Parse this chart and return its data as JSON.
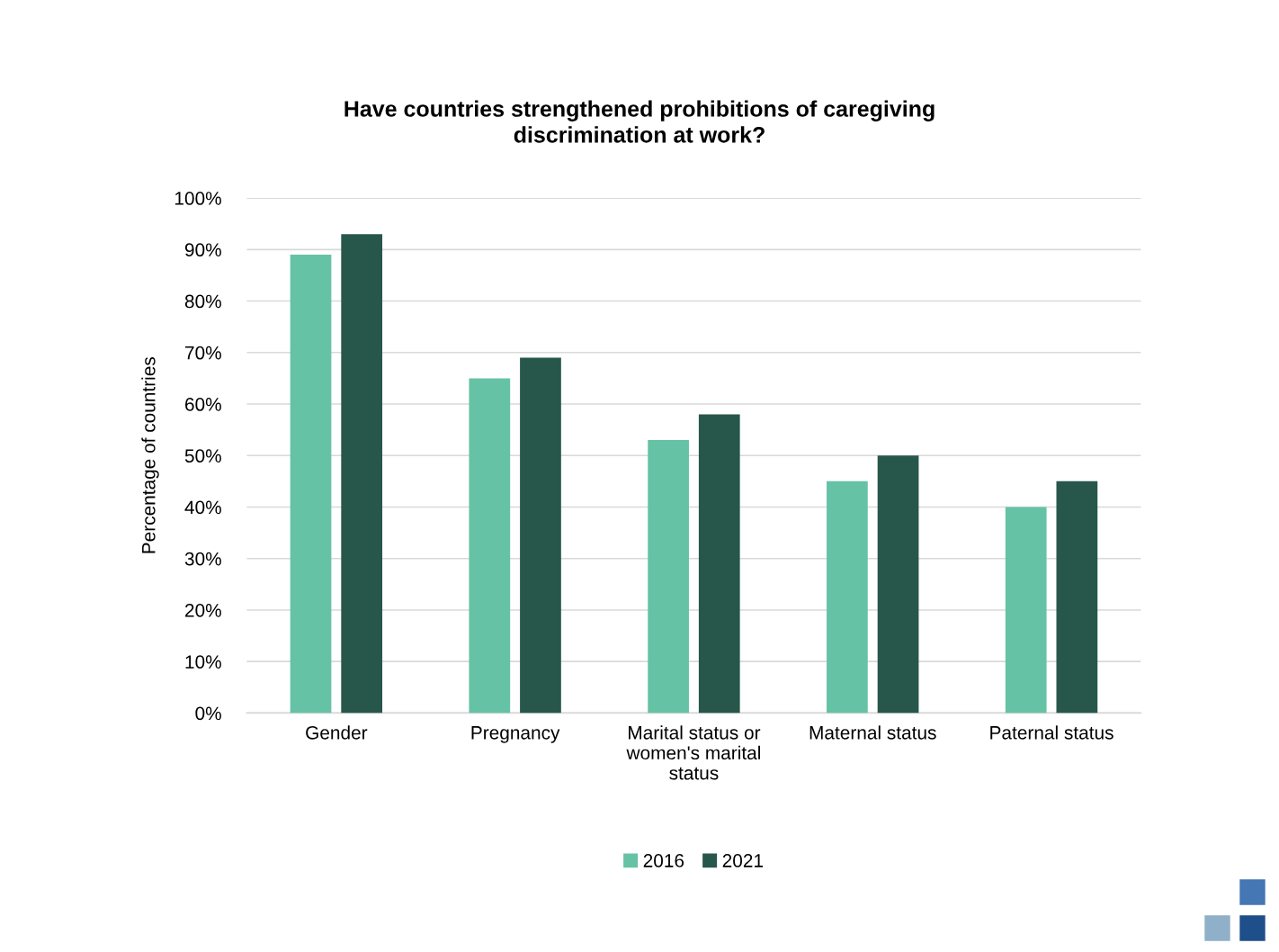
{
  "chart_data": {
    "type": "bar",
    "title": "Have countries strengthened prohibitions of caregiving discrimination at work?",
    "ylabel": "Percentage of countries",
    "categories": [
      "Gender",
      "Pregnancy",
      "Marital status or women's marital status",
      "Maternal status",
      "Paternal status"
    ],
    "series": [
      {
        "name": "2016",
        "color": "#66c2a5",
        "values": [
          89,
          65,
          53,
          45,
          40
        ]
      },
      {
        "name": "2021",
        "color": "#27574a",
        "values": [
          93,
          69,
          58,
          50,
          45
        ]
      }
    ],
    "ylim": [
      0,
      100
    ],
    "yticks": [
      {
        "value": 0,
        "label": "0%"
      },
      {
        "value": 10,
        "label": "10%"
      },
      {
        "value": 20,
        "label": "20%"
      },
      {
        "value": 30,
        "label": "30%"
      },
      {
        "value": 40,
        "label": "40%"
      },
      {
        "value": 50,
        "label": "50%"
      },
      {
        "value": 60,
        "label": "60%"
      },
      {
        "value": 70,
        "label": "70%"
      },
      {
        "value": 80,
        "label": "80%"
      },
      {
        "value": 90,
        "label": "90%"
      },
      {
        "value": 100,
        "label": "100%"
      }
    ],
    "grid": "y",
    "legend": "bottom"
  }
}
